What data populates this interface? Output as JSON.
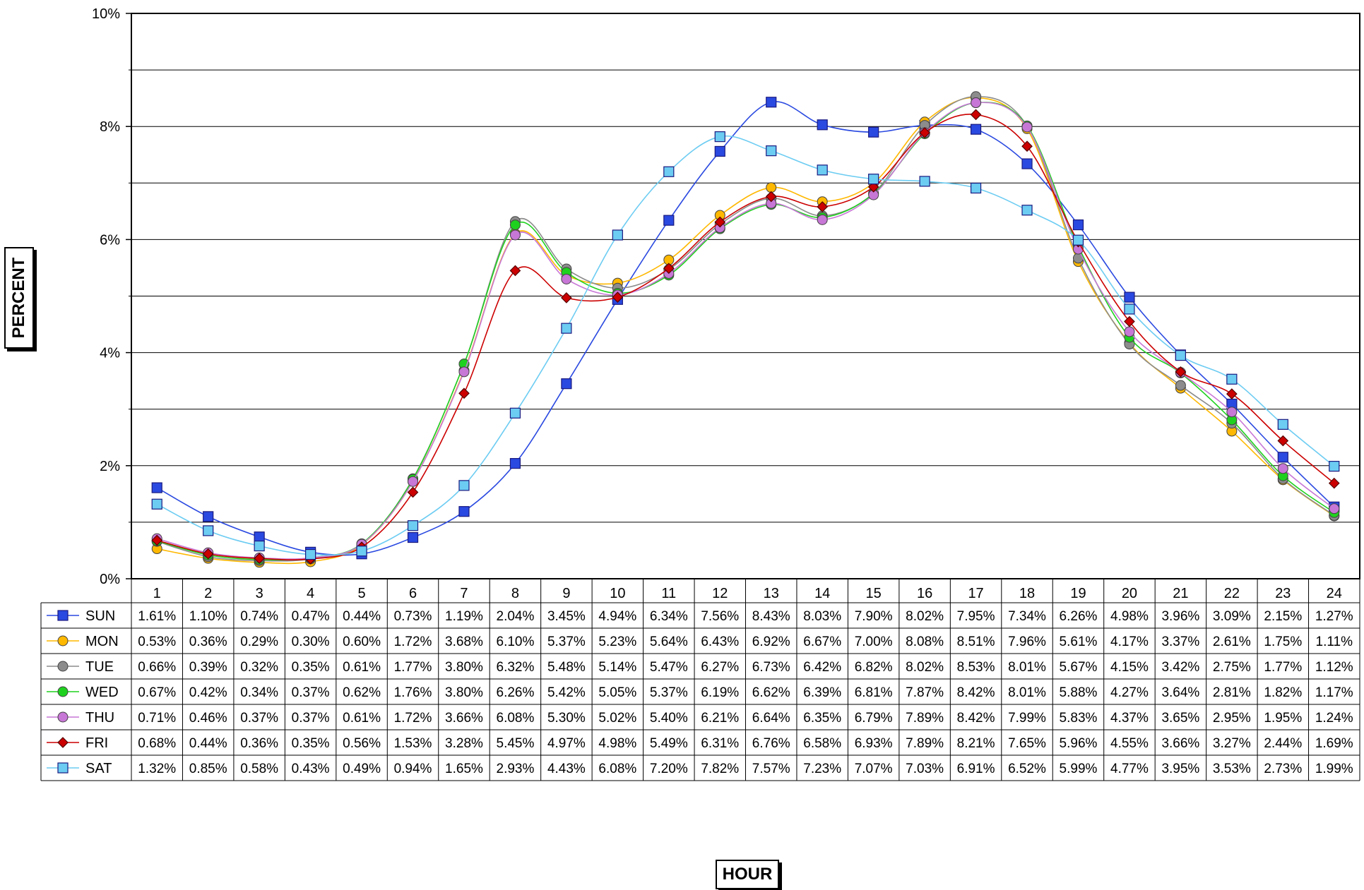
{
  "chart_data": {
    "type": "line",
    "xlabel": "HOUR",
    "ylabel": "PERCENT",
    "ylim": [
      0,
      10
    ],
    "y_ticks": [
      "0%",
      "2%",
      "4%",
      "6%",
      "8%",
      "10%"
    ],
    "x": [
      "1",
      "2",
      "3",
      "4",
      "5",
      "6",
      "7",
      "8",
      "9",
      "10",
      "11",
      "12",
      "13",
      "14",
      "15",
      "16",
      "17",
      "18",
      "19",
      "20",
      "21",
      "22",
      "23",
      "24"
    ],
    "grid": "horizontal every 1%",
    "legend": "data table below chart",
    "series": [
      {
        "name": "SUN",
        "color": "#2a49e0",
        "marker": "square",
        "values": [
          1.61,
          1.1,
          0.74,
          0.47,
          0.44,
          0.73,
          1.19,
          2.04,
          3.45,
          4.94,
          6.34,
          7.56,
          8.43,
          8.03,
          7.9,
          8.02,
          7.95,
          7.34,
          6.26,
          4.98,
          3.96,
          3.09,
          2.15,
          1.27
        ],
        "labels": [
          "1.61%",
          "1.10%",
          "0.74%",
          "0.47%",
          "0.44%",
          "0.73%",
          "1.19%",
          "2.04%",
          "3.45%",
          "4.94%",
          "6.34%",
          "7.56%",
          "8.43%",
          "8.03%",
          "7.90%",
          "8.02%",
          "7.95%",
          "7.34%",
          "6.26%",
          "4.98%",
          "3.96%",
          "3.09%",
          "2.15%",
          "1.27%"
        ]
      },
      {
        "name": "MON",
        "color": "#ffb800",
        "marker": "circle",
        "values": [
          0.53,
          0.36,
          0.29,
          0.3,
          0.6,
          1.72,
          3.68,
          6.1,
          5.37,
          5.23,
          5.64,
          6.43,
          6.92,
          6.67,
          7.0,
          8.08,
          8.51,
          7.96,
          5.61,
          4.17,
          3.37,
          2.61,
          1.75,
          1.11
        ],
        "labels": [
          "0.53%",
          "0.36%",
          "0.29%",
          "0.30%",
          "0.60%",
          "1.72%",
          "3.68%",
          "6.10%",
          "5.37%",
          "5.23%",
          "5.64%",
          "6.43%",
          "6.92%",
          "6.67%",
          "7.00%",
          "8.08%",
          "8.51%",
          "7.96%",
          "5.61%",
          "4.17%",
          "3.37%",
          "2.61%",
          "1.75%",
          "1.11%"
        ]
      },
      {
        "name": "TUE",
        "color": "#8c8c8c",
        "marker": "circle",
        "values": [
          0.66,
          0.39,
          0.32,
          0.35,
          0.61,
          1.77,
          3.8,
          6.32,
          5.48,
          5.14,
          5.47,
          6.27,
          6.73,
          6.42,
          6.82,
          8.02,
          8.53,
          8.01,
          5.67,
          4.15,
          3.42,
          2.75,
          1.77,
          1.12
        ],
        "labels": [
          "0.66%",
          "0.39%",
          "0.32%",
          "0.35%",
          "0.61%",
          "1.77%",
          "3.80%",
          "6.32%",
          "5.48%",
          "5.14%",
          "5.47%",
          "6.27%",
          "6.73%",
          "6.42%",
          "6.82%",
          "8.02%",
          "8.53%",
          "8.01%",
          "5.67%",
          "4.15%",
          "3.42%",
          "2.75%",
          "1.77%",
          "1.12%"
        ]
      },
      {
        "name": "WED",
        "color": "#1fd11f",
        "marker": "circle",
        "values": [
          0.67,
          0.42,
          0.34,
          0.37,
          0.62,
          1.76,
          3.8,
          6.26,
          5.42,
          5.05,
          5.37,
          6.19,
          6.62,
          6.39,
          6.81,
          7.87,
          8.42,
          8.01,
          5.88,
          4.27,
          3.64,
          2.81,
          1.82,
          1.17
        ],
        "labels": [
          "0.67%",
          "0.42%",
          "0.34%",
          "0.37%",
          "0.62%",
          "1.76%",
          "3.80%",
          "6.26%",
          "5.42%",
          "5.05%",
          "5.37%",
          "6.19%",
          "6.62%",
          "6.39%",
          "6.81%",
          "7.87%",
          "8.42%",
          "8.01%",
          "5.88%",
          "4.27%",
          "3.64%",
          "2.81%",
          "1.82%",
          "1.17%"
        ]
      },
      {
        "name": "THU",
        "color": "#c777d6",
        "marker": "circle",
        "values": [
          0.71,
          0.46,
          0.37,
          0.37,
          0.61,
          1.72,
          3.66,
          6.08,
          5.3,
          5.02,
          5.4,
          6.21,
          6.64,
          6.35,
          6.79,
          7.89,
          8.42,
          7.99,
          5.83,
          4.37,
          3.65,
          2.95,
          1.95,
          1.24
        ],
        "labels": [
          "0.71%",
          "0.46%",
          "0.37%",
          "0.37%",
          "0.61%",
          "1.72%",
          "3.66%",
          "6.08%",
          "5.30%",
          "5.02%",
          "5.40%",
          "6.21%",
          "6.64%",
          "6.35%",
          "6.79%",
          "7.89%",
          "8.42%",
          "7.99%",
          "5.83%",
          "4.37%",
          "3.65%",
          "2.95%",
          "1.95%",
          "1.24%"
        ]
      },
      {
        "name": "FRI",
        "color": "#cc0000",
        "marker": "diamond",
        "values": [
          0.68,
          0.44,
          0.36,
          0.35,
          0.56,
          1.53,
          3.28,
          5.45,
          4.97,
          4.98,
          5.49,
          6.31,
          6.76,
          6.58,
          6.93,
          7.89,
          8.21,
          7.65,
          5.96,
          4.55,
          3.66,
          3.27,
          2.44,
          1.69
        ],
        "labels": [
          "0.68%",
          "0.44%",
          "0.36%",
          "0.35%",
          "0.56%",
          "1.53%",
          "3.28%",
          "5.45%",
          "4.97%",
          "4.98%",
          "5.49%",
          "6.31%",
          "6.76%",
          "6.58%",
          "6.93%",
          "7.89%",
          "8.21%",
          "7.65%",
          "5.96%",
          "4.55%",
          "3.66%",
          "3.27%",
          "2.44%",
          "1.69%"
        ]
      },
      {
        "name": "SAT",
        "color": "#6cccf2",
        "marker": "square",
        "values": [
          1.32,
          0.85,
          0.58,
          0.43,
          0.49,
          0.94,
          1.65,
          2.93,
          4.43,
          6.08,
          7.2,
          7.82,
          7.57,
          7.23,
          7.07,
          7.03,
          6.91,
          6.52,
          5.99,
          4.77,
          3.95,
          3.53,
          2.73,
          1.99
        ],
        "labels": [
          "1.32%",
          "0.85%",
          "0.58%",
          "0.43%",
          "0.49%",
          "0.94%",
          "1.65%",
          "2.93%",
          "4.43%",
          "6.08%",
          "7.20%",
          "7.82%",
          "7.57%",
          "7.23%",
          "7.07%",
          "7.03%",
          "6.91%",
          "6.52%",
          "5.99%",
          "4.77%",
          "3.95%",
          "3.53%",
          "2.73%",
          "1.99%"
        ]
      }
    ]
  }
}
